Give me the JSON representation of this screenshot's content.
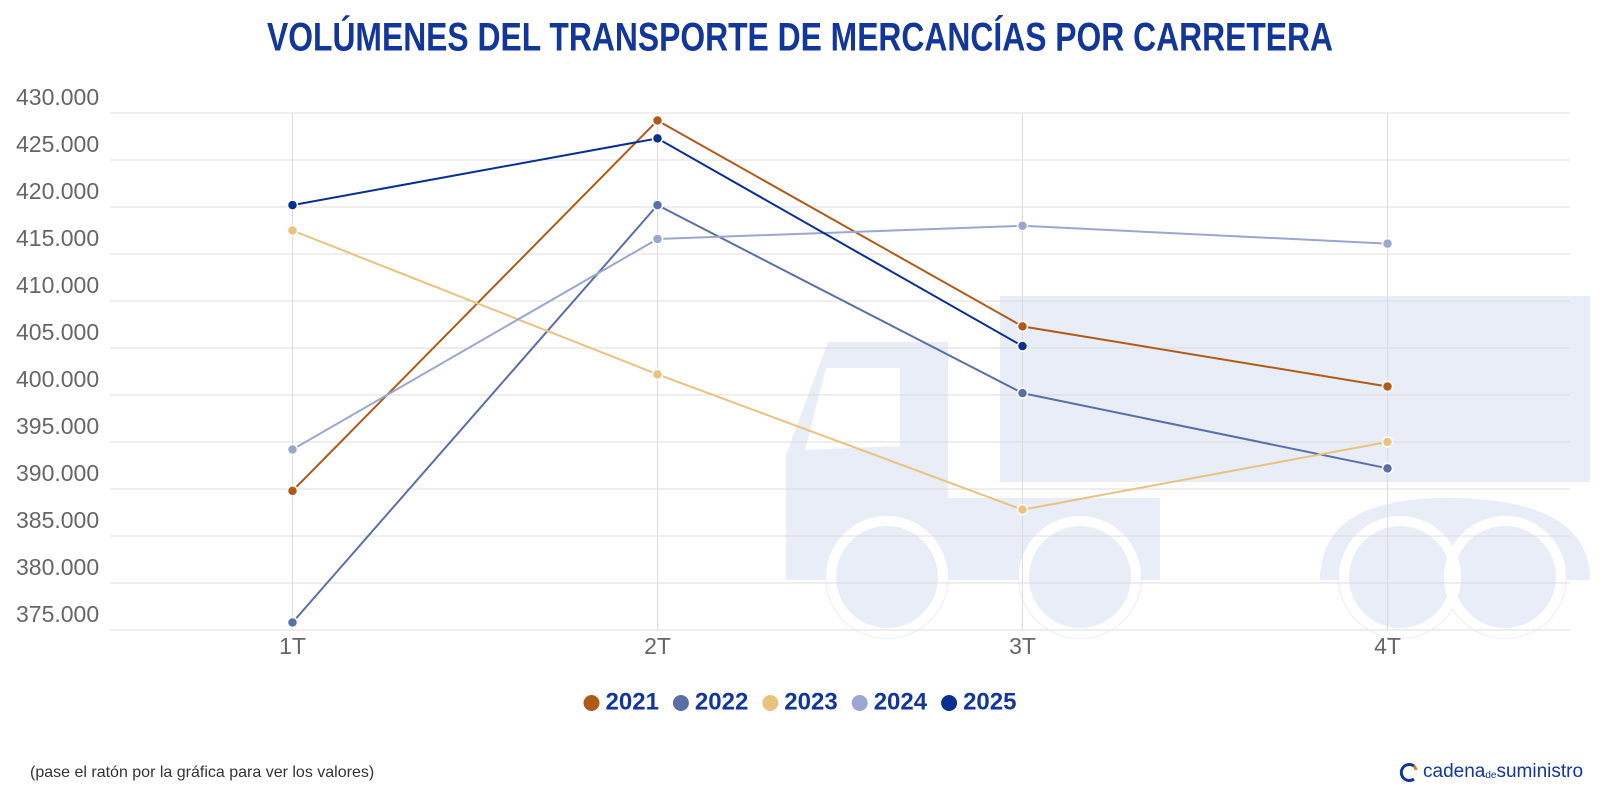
{
  "chart_data": {
    "type": "line",
    "title": "VOLÚMENES DEL TRANSPORTE DE MERCANCÍAS POR CARRETERA",
    "categories": [
      "1T",
      "2T",
      "3T",
      "4T"
    ],
    "series": [
      {
        "name": "2021",
        "color": "#b05a1a",
        "values": [
          389800,
          429200,
          407300,
          400900
        ]
      },
      {
        "name": "2022",
        "color": "#5a6fa5",
        "values": [
          375800,
          420200,
          400200,
          392200
        ]
      },
      {
        "name": "2023",
        "color": "#e8c27f",
        "values": [
          417500,
          402200,
          387800,
          395000
        ]
      },
      {
        "name": "2024",
        "color": "#9aa7cf",
        "values": [
          394200,
          416600,
          418000,
          416100
        ]
      },
      {
        "name": "2025",
        "color": "#0a2f93",
        "values": [
          420200,
          427300,
          405200,
          null
        ]
      }
    ],
    "ylim": [
      375000,
      430000
    ],
    "yticks": [
      {
        "value": 375000,
        "label": "375.000"
      },
      {
        "value": 380000,
        "label": "380.000"
      },
      {
        "value": 385000,
        "label": "385.000"
      },
      {
        "value": 390000,
        "label": "390.000"
      },
      {
        "value": 395000,
        "label": "395.000"
      },
      {
        "value": 400000,
        "label": "400.000"
      },
      {
        "value": 405000,
        "label": "405.000"
      },
      {
        "value": 410000,
        "label": "410.000"
      },
      {
        "value": 415000,
        "label": "415.000"
      },
      {
        "value": 420000,
        "label": "420.000"
      },
      {
        "value": 425000,
        "label": "425.000"
      },
      {
        "value": 430000,
        "label": "430.000"
      }
    ],
    "grid": true
  },
  "footer": {
    "note": "(pase el ratón por la gráfica para ver los valores)",
    "brand": [
      "cadena",
      "de",
      "suministro"
    ]
  }
}
